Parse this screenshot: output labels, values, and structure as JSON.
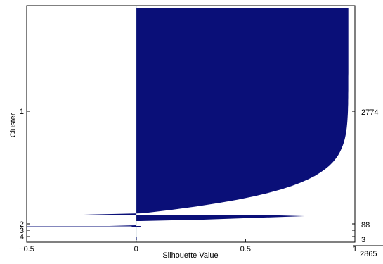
{
  "chart_data": {
    "type": "bar",
    "orientation": "horizontal",
    "xlabel": "Silhouette Value",
    "ylabel": "Cluster",
    "xlim": [
      -0.5,
      1
    ],
    "xticks": [
      -0.5,
      0,
      0.5,
      1
    ],
    "xtick_labels": [
      "−0.5",
      "0",
      "0.5",
      "1"
    ],
    "grid": false,
    "bar_color": "#0a0f78",
    "clusters": [
      {
        "label": "1",
        "count": "2774",
        "min": 0.0,
        "max": 0.97,
        "profile": "convex"
      },
      {
        "label": "2",
        "count": "88",
        "min": -0.24,
        "max": 0.77,
        "profile": "tapered"
      },
      {
        "label": "3",
        "count": "3",
        "min": -0.02,
        "max": 0.02,
        "profile": "flat"
      },
      {
        "label": "4",
        "count": "",
        "min": 0.0,
        "max": 0.0,
        "profile": "flat"
      }
    ],
    "total": "2865"
  }
}
